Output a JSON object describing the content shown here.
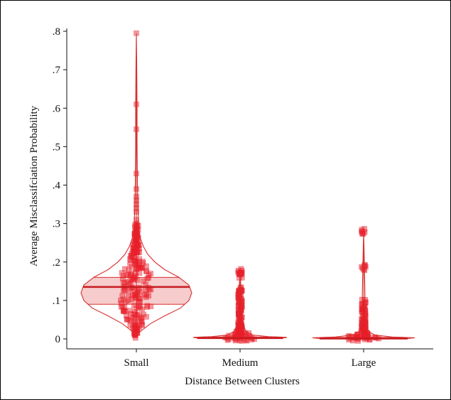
{
  "chart_data": {
    "type": "violin",
    "xlabel": "Distance Between Clusters",
    "ylabel": "Average Misclassifciation Probability",
    "categories": [
      "Small",
      "Medium",
      "Large"
    ],
    "ylim": [
      0,
      0.8
    ],
    "yticks": [
      0,
      0.1,
      0.2,
      0.3,
      0.4,
      0.5,
      0.6,
      0.7,
      0.8
    ],
    "ytick_labels": [
      "0",
      ".1",
      ".2",
      ".3",
      ".4",
      ".5",
      ".6",
      ".7",
      ".8"
    ],
    "grid": false,
    "colors": {
      "marker": "#e8202a",
      "violin_edge": "#d9302f",
      "box_fill": "#f6cccc",
      "median": "#c61a1f"
    },
    "groups": [
      {
        "name": "Small",
        "median": 0.135,
        "q1": 0.09,
        "q3": 0.16,
        "min": 0.01,
        "max": 0.795,
        "points": [
          0.795,
          0.61,
          0.545,
          0.43,
          0.39,
          0.37,
          0.36,
          0.35,
          0.34,
          0.33,
          0.31,
          0.3,
          0.29,
          0.28,
          0.27,
          0.26,
          0.25,
          0.24,
          0.23,
          0.22,
          0.21,
          0.2,
          0.19,
          0.18,
          0.17,
          0.16,
          0.15,
          0.14,
          0.13,
          0.12,
          0.11,
          0.1,
          0.09,
          0.08,
          0.07,
          0.06,
          0.05,
          0.04,
          0.03,
          0.02,
          0.01
        ]
      },
      {
        "name": "Medium",
        "median": 0.002,
        "q1": 0.0,
        "q3": 0.005,
        "min": 0.0,
        "max": 0.175,
        "points": [
          0.175,
          0.165,
          0.13,
          0.12,
          0.11,
          0.1,
          0.09,
          0.08,
          0.07,
          0.06,
          0.05,
          0.04,
          0.035,
          0.03,
          0.025,
          0.02,
          0.015,
          0.01,
          0.008,
          0.005,
          0.003,
          0.001
        ]
      },
      {
        "name": "Large",
        "median": 0.001,
        "q1": 0.0,
        "q3": 0.004,
        "min": 0.0,
        "max": 0.28,
        "points": [
          0.28,
          0.185,
          0.095,
          0.08,
          0.07,
          0.055,
          0.045,
          0.04,
          0.035,
          0.03,
          0.025,
          0.02,
          0.015,
          0.01,
          0.008,
          0.005,
          0.003,
          0.001
        ]
      }
    ]
  }
}
